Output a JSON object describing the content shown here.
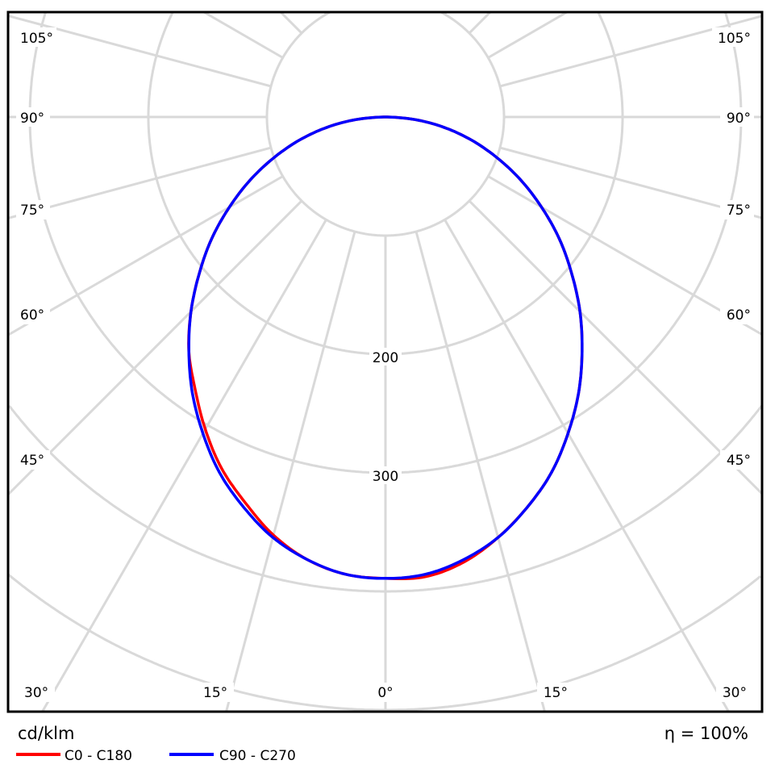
{
  "chart_data": {
    "type": "polar",
    "unit": "cd/klm",
    "efficiency": "η = 100%",
    "radial_ticks": [
      100,
      200,
      300,
      400,
      500,
      600
    ],
    "radial_labels": [
      "200",
      "300"
    ],
    "angle_labels_left": [
      "105°",
      "90°",
      "75°",
      "60°",
      "45°",
      "30°",
      "15°"
    ],
    "angle_labels_bottom": [
      "0°"
    ],
    "angle_labels_right": [
      "105°",
      "90°",
      "75°",
      "60°",
      "45°",
      "30°",
      "15°"
    ],
    "grid": true,
    "grid_angle_step_deg": 15,
    "legend_placement": "bottom-left",
    "angles_deg": [
      -90,
      -85,
      -80,
      -75,
      -70,
      -65,
      -60,
      -55,
      -50,
      -45,
      -40,
      -35,
      -30,
      -25,
      -20,
      -15,
      -10,
      -5,
      0,
      5,
      10,
      15,
      20,
      25,
      30,
      35,
      40,
      45,
      50,
      55,
      60,
      65,
      70,
      75,
      80,
      85,
      90
    ],
    "series": [
      {
        "name": "C0 - C180",
        "color": "#ff0000",
        "values": [
          0,
          25,
          50,
          75,
          100,
          126,
          152,
          179,
          205,
          232,
          258,
          280,
          304,
          327,
          346,
          365,
          379,
          387,
          389,
          389,
          381,
          367,
          350,
          331,
          308,
          284,
          258,
          232,
          205,
          179,
          152,
          126,
          100,
          75,
          50,
          25,
          0
        ]
      },
      {
        "name": "C90 - C270",
        "color": "#0000ff",
        "values": [
          0,
          25,
          50,
          75,
          100,
          126,
          152,
          179,
          205,
          232,
          258,
          284,
          308,
          331,
          350,
          367,
          379,
          387,
          389,
          387,
          379,
          367,
          350,
          331,
          308,
          284,
          258,
          232,
          205,
          179,
          152,
          126,
          100,
          75,
          50,
          25,
          0
        ]
      }
    ],
    "colors": {
      "grid": "#d9d9d9",
      "frame": "#000000"
    }
  }
}
